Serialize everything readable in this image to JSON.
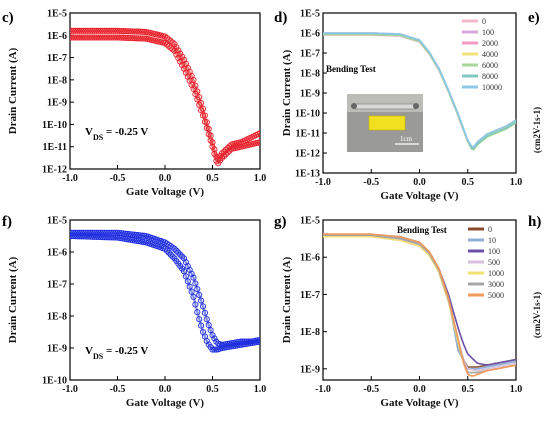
{
  "figure": {
    "cutoff_labels": [
      {
        "letter": "e)",
        "axis_text": "(cm2V-1s-1)"
      },
      {
        "letter": "h)",
        "axis_text": "(cm2V-1s-1)"
      }
    ]
  },
  "chart_data": [
    {
      "panel": "c)",
      "type": "scatter",
      "color": "#e8202a",
      "xlabel": "Gate Voltage (V)",
      "ylabel": "Drain Current (A)",
      "xlim": [
        -1.0,
        1.0
      ],
      "ylim_exp": [
        -12,
        -5
      ],
      "xticks": [
        "-1.0",
        "-0.5",
        "0.0",
        "0.5",
        "1.0"
      ],
      "yticks": [
        "1E-12",
        "1E-11",
        "1E-10",
        "1E-9",
        "1E-8",
        "1E-7",
        "1E-6",
        "1E-5"
      ],
      "annotation": {
        "main": "V",
        "sub": "DS",
        "rest": " = -0.25 V"
      },
      "legend": null,
      "series": [
        {
          "x": [
            -1.0,
            -0.5,
            -0.2,
            0.0,
            0.1,
            0.2,
            0.3,
            0.4,
            0.5,
            0.55,
            0.6,
            0.7,
            0.8,
            0.9,
            1.0
          ],
          "logy": [
            -5.8,
            -5.8,
            -5.85,
            -6.05,
            -6.4,
            -7.1,
            -8.0,
            -9.3,
            -10.8,
            -11.6,
            -11.3,
            -10.9,
            -10.8,
            -10.6,
            -10.4
          ]
        },
        {
          "x": [
            -1.0,
            -0.5,
            -0.2,
            0.0,
            0.1,
            0.2,
            0.3,
            0.4,
            0.5,
            0.55,
            0.6,
            0.7,
            0.8,
            0.9,
            1.0
          ],
          "logy": [
            -6.1,
            -6.1,
            -6.15,
            -6.35,
            -6.7,
            -7.5,
            -8.4,
            -9.6,
            -11.0,
            -11.8,
            -11.5,
            -11.1,
            -11.0,
            -10.9,
            -10.8
          ]
        }
      ]
    },
    {
      "panel": "d)",
      "type": "line",
      "xlabel": "Gate Voltage (V)",
      "ylabel": "Drain Current (A)",
      "xlim": [
        -1.0,
        1.0
      ],
      "ylim_exp": [
        -13,
        -5
      ],
      "xticks": [
        "-1.0",
        "-0.5",
        "0.0",
        "0.5",
        "1.0"
      ],
      "yticks": [
        "1E-13",
        "1E-12",
        "1E-11",
        "1E-10",
        "1E-9",
        "1E-8",
        "1E-7",
        "1E-6",
        "1E-5"
      ],
      "annotation": {
        "main": "Bending Test",
        "sub": "",
        "rest": ""
      },
      "inset_label": "1cm",
      "legend": {
        "placement": "top-right",
        "entries": [
          "0",
          "100",
          "2000",
          "4000",
          "6000",
          "8000",
          "10000"
        ]
      },
      "series": [
        {
          "name": "0",
          "color": "#f4b8c8",
          "x": [
            -1.0,
            -0.5,
            -0.2,
            0.0,
            0.1,
            0.2,
            0.3,
            0.4,
            0.5,
            0.55,
            0.6,
            0.7,
            0.8,
            0.9,
            1.0
          ],
          "logy": [
            -6.05,
            -6.05,
            -6.1,
            -6.4,
            -7.0,
            -7.8,
            -8.9,
            -10.1,
            -11.4,
            -11.8,
            -11.5,
            -11.1,
            -10.9,
            -10.7,
            -10.4
          ]
        },
        {
          "name": "100",
          "color": "#d6a8d8",
          "x": [
            -1.0,
            -0.5,
            -0.2,
            0.0,
            0.1,
            0.2,
            0.3,
            0.4,
            0.5,
            0.55,
            0.6,
            0.7,
            0.8,
            0.9,
            1.0
          ],
          "logy": [
            -6.0,
            -6.0,
            -6.05,
            -6.35,
            -6.95,
            -7.75,
            -8.85,
            -10.05,
            -11.35,
            -11.75,
            -11.45,
            -11.05,
            -10.85,
            -10.65,
            -10.35
          ]
        },
        {
          "name": "2000",
          "color": "#f29ac0",
          "x": [
            -1.0,
            -0.5,
            -0.2,
            0.0,
            0.1,
            0.2,
            0.3,
            0.4,
            0.5,
            0.55,
            0.6,
            0.7,
            0.8,
            0.9,
            1.0
          ],
          "logy": [
            -6.1,
            -6.1,
            -6.15,
            -6.45,
            -7.05,
            -7.85,
            -8.95,
            -10.15,
            -11.45,
            -11.85,
            -11.55,
            -11.15,
            -10.95,
            -10.75,
            -10.45
          ]
        },
        {
          "name": "4000",
          "color": "#f2e07a",
          "x": [
            -1.0,
            -0.5,
            -0.2,
            0.0,
            0.1,
            0.2,
            0.3,
            0.4,
            0.5,
            0.55,
            0.6,
            0.7,
            0.8,
            0.9,
            1.0
          ],
          "logy": [
            -6.05,
            -6.05,
            -6.1,
            -6.4,
            -7.0,
            -7.8,
            -8.9,
            -10.1,
            -11.4,
            -11.8,
            -11.5,
            -11.1,
            -10.9,
            -10.7,
            -10.4
          ]
        },
        {
          "name": "6000",
          "color": "#a8d89a",
          "x": [
            -1.0,
            -0.5,
            -0.2,
            0.0,
            0.1,
            0.2,
            0.3,
            0.4,
            0.5,
            0.55,
            0.6,
            0.7,
            0.8,
            0.9,
            1.0
          ],
          "logy": [
            -6.08,
            -6.08,
            -6.13,
            -6.43,
            -7.03,
            -7.83,
            -8.93,
            -10.13,
            -11.43,
            -11.9,
            -11.6,
            -11.2,
            -11.0,
            -10.8,
            -10.5
          ]
        },
        {
          "name": "8000",
          "color": "#7fc8c0",
          "x": [
            -1.0,
            -0.5,
            -0.2,
            0.0,
            0.1,
            0.2,
            0.3,
            0.4,
            0.5,
            0.55,
            0.6,
            0.7,
            0.8,
            0.9,
            1.0
          ],
          "logy": [
            -6.02,
            -6.02,
            -6.07,
            -6.37,
            -6.97,
            -7.77,
            -8.87,
            -10.07,
            -11.37,
            -11.85,
            -11.55,
            -11.15,
            -10.95,
            -10.75,
            -10.45
          ]
        },
        {
          "name": "10000",
          "color": "#8cc8e8",
          "x": [
            -1.0,
            -0.5,
            -0.2,
            0.0,
            0.1,
            0.2,
            0.3,
            0.4,
            0.5,
            0.55,
            0.6,
            0.7,
            0.8,
            0.9,
            1.0
          ],
          "logy": [
            -6.0,
            -6.0,
            -6.05,
            -6.35,
            -6.95,
            -7.75,
            -8.85,
            -10.05,
            -11.35,
            -11.75,
            -11.45,
            -11.05,
            -10.85,
            -10.65,
            -10.35
          ]
        }
      ]
    },
    {
      "panel": "f)",
      "type": "scatter",
      "color": "#1f2ee0",
      "xlabel": "Gate Voltage (V)",
      "ylabel": "Drain Current (A)",
      "xlim": [
        -1.0,
        1.0
      ],
      "ylim_exp": [
        -10,
        -5
      ],
      "xticks": [
        "-1.0",
        "-0.5",
        "0.0",
        "0.5",
        "1.0"
      ],
      "yticks": [
        "1E-10",
        "1E-9",
        "1E-8",
        "1E-7",
        "1E-6",
        "1E-5"
      ],
      "annotation": {
        "main": "V",
        "sub": "DS",
        "rest": " = -0.25 V"
      },
      "legend": null,
      "series": [
        {
          "x": [
            -1.0,
            -0.5,
            -0.2,
            0.0,
            0.1,
            0.2,
            0.3,
            0.4,
            0.45,
            0.5,
            0.55,
            0.6,
            0.7,
            0.8,
            0.9,
            1.0
          ],
          "logy": [
            -5.4,
            -5.4,
            -5.5,
            -5.7,
            -5.9,
            -6.2,
            -6.8,
            -7.7,
            -8.2,
            -8.6,
            -8.85,
            -8.9,
            -8.85,
            -8.8,
            -8.8,
            -8.75
          ]
        },
        {
          "x": [
            -1.0,
            -0.5,
            -0.2,
            0.0,
            0.1,
            0.2,
            0.3,
            0.35,
            0.4,
            0.45,
            0.5,
            0.55,
            0.6,
            0.7,
            0.8,
            0.9,
            1.0
          ],
          "logy": [
            -5.5,
            -5.55,
            -5.7,
            -5.9,
            -6.2,
            -6.6,
            -7.4,
            -8.0,
            -8.5,
            -8.85,
            -9.05,
            -9.05,
            -9.0,
            -8.95,
            -8.9,
            -8.85,
            -8.8
          ]
        }
      ]
    },
    {
      "panel": "g)",
      "type": "line",
      "xlabel": "Gate Voltage (V)",
      "ylabel": "Drain Current (A)",
      "xlim": [
        -1.0,
        1.0
      ],
      "ylim_exp": [
        -9.3,
        -5
      ],
      "xticks": [
        "-1.0",
        "-0.5",
        "0.0",
        "0.5",
        "1.0"
      ],
      "yticks": [
        "1E-9",
        "1E-8",
        "1E-7",
        "1E-6",
        "1E-5"
      ],
      "annotation": {
        "main": "Bending Test",
        "sub": "",
        "rest": ""
      },
      "legend": {
        "placement": "top-right",
        "entries": [
          "0",
          "10",
          "100",
          "500",
          "1000",
          "3000",
          "5000"
        ]
      },
      "series": [
        {
          "name": "0",
          "color": "#8a4a2a",
          "x": [
            -1.0,
            -0.5,
            -0.2,
            0.0,
            0.1,
            0.2,
            0.3,
            0.35,
            0.4,
            0.5,
            0.6,
            0.7,
            0.8,
            0.9,
            1.0
          ],
          "logy": [
            -5.4,
            -5.4,
            -5.45,
            -5.6,
            -5.85,
            -6.3,
            -7.1,
            -7.8,
            -8.5,
            -8.95,
            -8.95,
            -8.9,
            -8.85,
            -8.8,
            -8.75
          ]
        },
        {
          "name": "10",
          "color": "#8ab0d8",
          "x": [
            -1.0,
            -0.5,
            -0.2,
            0.0,
            0.1,
            0.2,
            0.3,
            0.35,
            0.4,
            0.5,
            0.6,
            0.7,
            0.8,
            0.9,
            1.0
          ],
          "logy": [
            -5.4,
            -5.4,
            -5.45,
            -5.6,
            -5.85,
            -6.3,
            -7.1,
            -7.8,
            -8.5,
            -9.0,
            -9.0,
            -8.95,
            -8.9,
            -8.85,
            -8.8
          ]
        },
        {
          "name": "100",
          "color": "#6a50a8",
          "x": [
            -1.0,
            -0.5,
            -0.2,
            0.0,
            0.1,
            0.2,
            0.3,
            0.4,
            0.45,
            0.5,
            0.6,
            0.7,
            0.8,
            0.9,
            1.0
          ],
          "logy": [
            -5.42,
            -5.42,
            -5.5,
            -5.65,
            -5.9,
            -6.3,
            -7.0,
            -7.9,
            -8.3,
            -8.6,
            -8.85,
            -8.9,
            -8.85,
            -8.8,
            -8.75
          ]
        },
        {
          "name": "500",
          "color": "#d8c0e0",
          "x": [
            -1.0,
            -0.5,
            -0.2,
            0.0,
            0.1,
            0.2,
            0.3,
            0.4,
            0.45,
            0.5,
            0.6,
            0.7,
            0.8,
            0.9,
            1.0
          ],
          "logy": [
            -5.45,
            -5.45,
            -5.55,
            -5.7,
            -5.95,
            -6.4,
            -7.2,
            -8.2,
            -8.7,
            -9.0,
            -9.05,
            -9.0,
            -8.95,
            -8.9,
            -8.85
          ]
        },
        {
          "name": "1000",
          "color": "#f2e070",
          "x": [
            -1.0,
            -0.5,
            -0.2,
            0.0,
            0.1,
            0.2,
            0.3,
            0.4,
            0.45,
            0.5,
            0.6,
            0.7,
            0.8,
            0.9,
            1.0
          ],
          "logy": [
            -5.45,
            -5.45,
            -5.55,
            -5.7,
            -5.95,
            -6.4,
            -7.2,
            -8.3,
            -8.8,
            -9.1,
            -9.1,
            -9.05,
            -9.0,
            -8.95,
            -8.9
          ]
        },
        {
          "name": "3000",
          "color": "#a8a8a8",
          "x": [
            -1.0,
            -0.5,
            -0.2,
            0.0,
            0.1,
            0.2,
            0.3,
            0.4,
            0.45,
            0.5,
            0.6,
            0.7,
            0.8,
            0.9,
            1.0
          ],
          "logy": [
            -5.4,
            -5.4,
            -5.5,
            -5.65,
            -5.9,
            -6.35,
            -7.15,
            -8.2,
            -8.75,
            -9.1,
            -9.1,
            -9.05,
            -9.0,
            -8.95,
            -8.9
          ]
        },
        {
          "name": "5000",
          "color": "#f29a5a",
          "x": [
            -1.0,
            -0.5,
            -0.2,
            0.0,
            0.1,
            0.2,
            0.3,
            0.4,
            0.45,
            0.5,
            0.55,
            0.6,
            0.7,
            0.8,
            0.9,
            1.0
          ],
          "logy": [
            -5.38,
            -5.38,
            -5.45,
            -5.6,
            -5.85,
            -6.3,
            -7.1,
            -8.2,
            -8.8,
            -9.15,
            -9.2,
            -9.15,
            -9.05,
            -9.0,
            -8.95,
            -8.9
          ]
        }
      ]
    }
  ]
}
